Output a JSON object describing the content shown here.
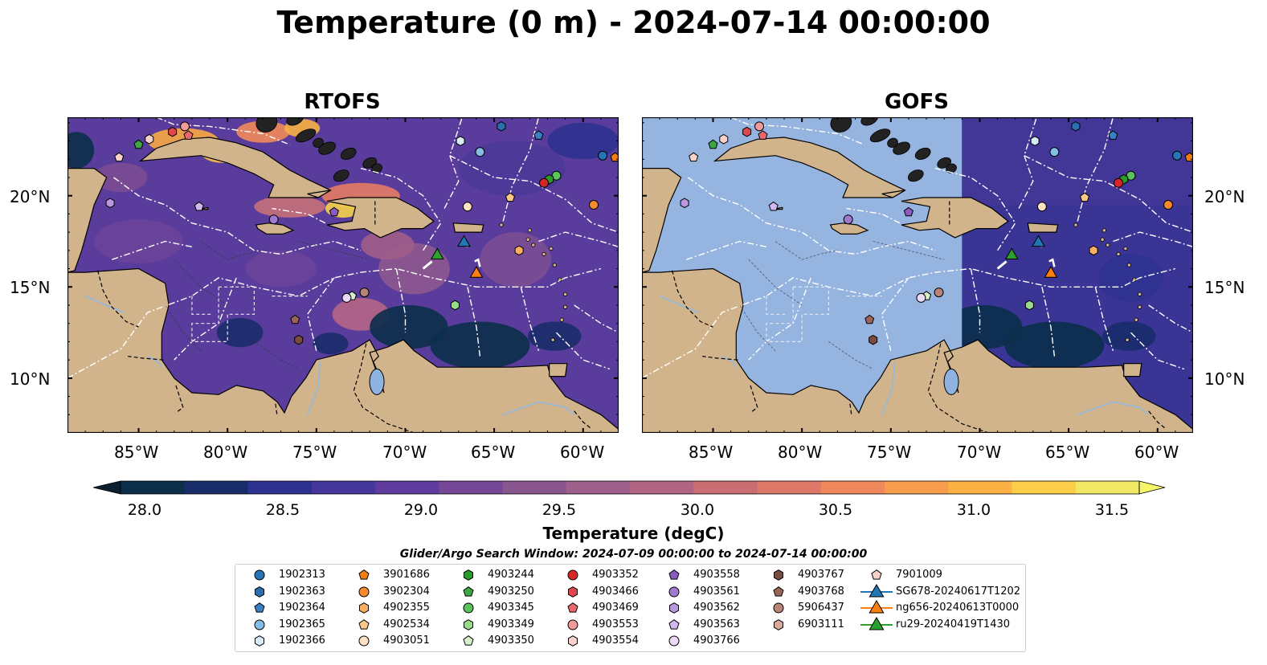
{
  "title": "Temperature (0 m) - 2024-07-14 00:00:00",
  "panels": [
    {
      "title": "RTOFS"
    },
    {
      "title": "GOFS"
    }
  ],
  "lon_labels": [
    "85°W",
    "80°W",
    "75°W",
    "70°W",
    "65°W",
    "60°W"
  ],
  "lat_labels": [
    "20°N",
    "15°N",
    "10°N"
  ],
  "colorbar": {
    "label": "Temperature (degC)",
    "ticks": [
      "28.0",
      "28.5",
      "29.0",
      "29.5",
      "30.0",
      "30.5",
      "31.0",
      "31.5"
    ],
    "colors": [
      "#0b2f4a",
      "#192c6a",
      "#2d3290",
      "#45369c",
      "#5e3b9d",
      "#744896",
      "#8a568f",
      "#9e5f8a",
      "#b26583",
      "#c96e73",
      "#dd7868",
      "#ef885c",
      "#f89c4e",
      "#fbb144",
      "#fbce4a",
      "#f1e865"
    ],
    "min": 28.0,
    "max": 31.5,
    "extend": "both"
  },
  "legend": {
    "title": "Glider/Argo Search Window: 2024-07-09 00:00:00 to 2024-07-14 00:00:00",
    "columns": [
      [
        {
          "label": "1902313",
          "marker": "circle",
          "color": "#2575b7"
        },
        {
          "label": "1902363",
          "marker": "hexagon",
          "color": "#2c6fae"
        },
        {
          "label": "1902364",
          "marker": "pentagon",
          "color": "#3a7fc0"
        },
        {
          "label": "1902365",
          "marker": "circle",
          "color": "#86bde6"
        },
        {
          "label": "1902366",
          "marker": "hexagon",
          "color": "#d7ebf7"
        }
      ],
      [
        {
          "label": "3901686",
          "marker": "pentagon",
          "color": "#f07e14"
        },
        {
          "label": "3902304",
          "marker": "circle",
          "color": "#f58b2c"
        },
        {
          "label": "4902355",
          "marker": "hexagon",
          "color": "#fbb063"
        },
        {
          "label": "4902534",
          "marker": "pentagon",
          "color": "#fcc98b"
        },
        {
          "label": "4903051",
          "marker": "circle",
          "color": "#fde3c4"
        }
      ],
      [
        {
          "label": "4903244",
          "marker": "hexagon",
          "color": "#2b9a2d"
        },
        {
          "label": "4903250",
          "marker": "pentagon",
          "color": "#3ea743"
        },
        {
          "label": "4903345",
          "marker": "circle",
          "color": "#5cc35c"
        },
        {
          "label": "4903349",
          "marker": "hexagon",
          "color": "#98dc8b"
        },
        {
          "label": "4903350",
          "marker": "pentagon",
          "color": "#d6f2cb"
        }
      ],
      [
        {
          "label": "4903352",
          "marker": "circle",
          "color": "#d62728"
        },
        {
          "label": "4903466",
          "marker": "hexagon",
          "color": "#e0474c"
        },
        {
          "label": "4903469",
          "marker": "pentagon",
          "color": "#e8686b"
        },
        {
          "label": "4903553",
          "marker": "circle",
          "color": "#f09a9a"
        },
        {
          "label": "4903554",
          "marker": "hexagon",
          "color": "#f9d0cc"
        }
      ],
      [
        {
          "label": "4903558",
          "marker": "pentagon",
          "color": "#8a5cc0"
        },
        {
          "label": "4903561",
          "marker": "circle",
          "color": "#a07ad0"
        },
        {
          "label": "4903562",
          "marker": "hexagon",
          "color": "#b998e0"
        },
        {
          "label": "4903563",
          "marker": "pentagon",
          "color": "#d2b8ee"
        },
        {
          "label": "4903766",
          "marker": "circle",
          "color": "#ead9f8"
        }
      ],
      [
        {
          "label": "4903767",
          "marker": "hexagon",
          "color": "#7b4a40"
        },
        {
          "label": "4903768",
          "marker": "pentagon",
          "color": "#9b6458"
        },
        {
          "label": "5906437",
          "marker": "circle",
          "color": "#bb8478"
        },
        {
          "label": "6903111",
          "marker": "hexagon",
          "color": "#dba99b"
        }
      ],
      [
        {
          "label": "7901009",
          "marker": "pentagon",
          "color": "#f8d2c8"
        },
        {
          "label": "SG678-20240617T1202",
          "marker": "triangle-line",
          "color": "#1f77b4"
        },
        {
          "label": "ng656-20240613T0000",
          "marker": "triangle-line",
          "color": "#ff7f0e"
        },
        {
          "label": "ru29-20240419T1430",
          "marker": "triangle-line",
          "color": "#2ca02c"
        }
      ]
    ]
  },
  "map_markers": [
    {
      "lon": -85.0,
      "lat": 22.8,
      "marker": "pentagon",
      "color": "#3ea743"
    },
    {
      "lon": -84.4,
      "lat": 23.1,
      "marker": "hexagon",
      "color": "#f9d0cc"
    },
    {
      "lon": -83.1,
      "lat": 23.5,
      "marker": "hexagon",
      "color": "#e0474c"
    },
    {
      "lon": -82.4,
      "lat": 23.8,
      "marker": "circle",
      "color": "#f09a9a"
    },
    {
      "lon": -82.2,
      "lat": 23.3,
      "marker": "pentagon",
      "color": "#e8686b"
    },
    {
      "lon": -86.1,
      "lat": 22.1,
      "marker": "pentagon",
      "color": "#f8d2c8"
    },
    {
      "lon": -86.6,
      "lat": 19.6,
      "marker": "hexagon",
      "color": "#b998e0"
    },
    {
      "lon": -81.6,
      "lat": 19.4,
      "marker": "pentagon",
      "color": "#d2b8ee"
    },
    {
      "lon": -77.4,
      "lat": 18.7,
      "marker": "circle",
      "color": "#a07ad0"
    },
    {
      "lon": -74.0,
      "lat": 19.1,
      "marker": "pentagon",
      "color": "#8a5cc0"
    },
    {
      "lon": -66.9,
      "lat": 23.0,
      "marker": "hexagon",
      "color": "#d7ebf7"
    },
    {
      "lon": -64.6,
      "lat": 23.8,
      "marker": "hexagon",
      "color": "#2c6fae"
    },
    {
      "lon": -62.5,
      "lat": 23.3,
      "marker": "pentagon",
      "color": "#3a7fc0"
    },
    {
      "lon": -65.8,
      "lat": 22.4,
      "marker": "circle",
      "color": "#86bde6"
    },
    {
      "lon": -58.9,
      "lat": 22.2,
      "marker": "circle",
      "color": "#2575b7"
    },
    {
      "lon": -58.2,
      "lat": 22.1,
      "marker": "pentagon",
      "color": "#f07e14"
    },
    {
      "lon": -61.5,
      "lat": 21.1,
      "marker": "circle",
      "color": "#5cc35c"
    },
    {
      "lon": -61.9,
      "lat": 20.9,
      "marker": "hexagon",
      "color": "#2b9a2d"
    },
    {
      "lon": -62.2,
      "lat": 20.7,
      "marker": "circle",
      "color": "#d62728"
    },
    {
      "lon": -64.1,
      "lat": 19.9,
      "marker": "pentagon",
      "color": "#fcc98b"
    },
    {
      "lon": -66.5,
      "lat": 19.4,
      "marker": "circle",
      "color": "#fde3c4"
    },
    {
      "lon": -59.4,
      "lat": 19.5,
      "marker": "circle",
      "color": "#f58b2c"
    },
    {
      "lon": -63.6,
      "lat": 17.0,
      "marker": "hexagon",
      "color": "#fbb063"
    },
    {
      "lon": -72.3,
      "lat": 14.7,
      "marker": "circle",
      "color": "#bb8478"
    },
    {
      "lon": -73.0,
      "lat": 14.5,
      "marker": "pentagon",
      "color": "#d6f2cb"
    },
    {
      "lon": -73.3,
      "lat": 14.4,
      "marker": "circle",
      "color": "#ead9f8"
    },
    {
      "lon": -67.2,
      "lat": 14.0,
      "marker": "hexagon",
      "color": "#98dc8b"
    },
    {
      "lon": -76.2,
      "lat": 13.2,
      "marker": "pentagon",
      "color": "#9b6458"
    },
    {
      "lon": -76.0,
      "lat": 12.1,
      "marker": "hexagon",
      "color": "#7b4a40"
    },
    {
      "lon": -66.7,
      "lat": 17.5,
      "marker": "triangle",
      "color": "#1f77b4"
    },
    {
      "lon": -66.0,
      "lat": 15.8,
      "marker": "triangle",
      "color": "#ff7f0e"
    },
    {
      "lon": -68.2,
      "lat": 16.8,
      "marker": "triangle",
      "color": "#2ca02c"
    }
  ],
  "colors": {
    "land": "#d2b48c",
    "no_data": "#95b4e0"
  }
}
